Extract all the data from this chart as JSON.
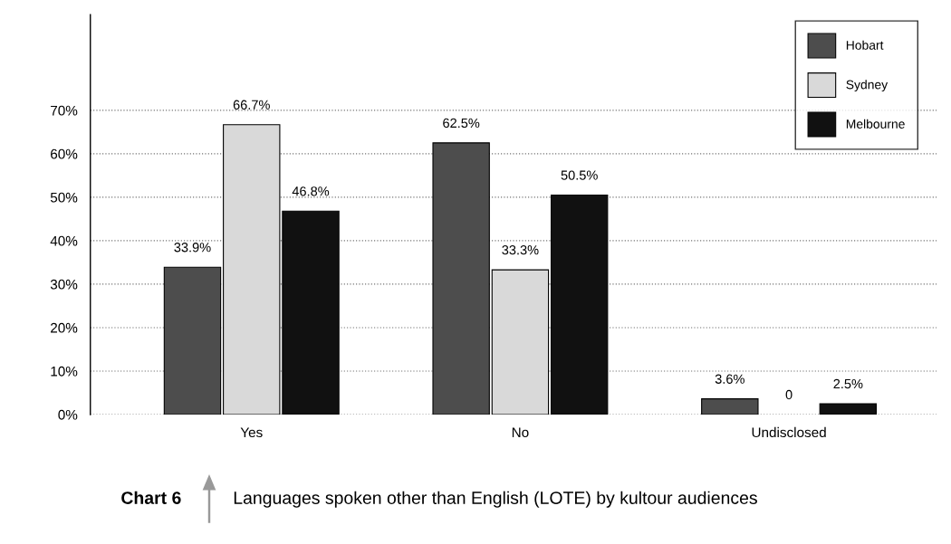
{
  "chart_data": {
    "type": "bar",
    "title": "Chart 6",
    "subtitle": "Languages spoken other than English (LOTE) by kultour audiences",
    "categories": [
      "Yes",
      "No",
      "Undisclosed"
    ],
    "series": [
      {
        "name": "Hobart",
        "color": "#4d4d4d",
        "values": [
          33.9,
          62.5,
          3.6
        ],
        "value_labels": [
          "33.9%",
          "62.5%",
          "3.6%"
        ]
      },
      {
        "name": "Sydney",
        "color": "#d9d9d9",
        "values": [
          66.7,
          33.3,
          0
        ],
        "value_labels": [
          "66.7%",
          "33.3%",
          "0"
        ]
      },
      {
        "name": "Melbourne",
        "color": "#111111",
        "values": [
          46.8,
          50.5,
          2.5
        ],
        "value_labels": [
          "46.8%",
          "50.5%",
          "2.5%"
        ]
      }
    ],
    "ylim": [
      0,
      92
    ],
    "yticks": [
      {
        "value": 0,
        "label": "0%"
      },
      {
        "value": 10,
        "label": "10%"
      },
      {
        "value": 20,
        "label": "20%"
      },
      {
        "value": 30,
        "label": "30%"
      },
      {
        "value": 40,
        "label": "40%"
      },
      {
        "value": 50,
        "label": "50%"
      },
      {
        "value": 60,
        "label": "60%"
      },
      {
        "value": 70,
        "label": "70%"
      }
    ],
    "grid": "y",
    "legend": "top right"
  }
}
